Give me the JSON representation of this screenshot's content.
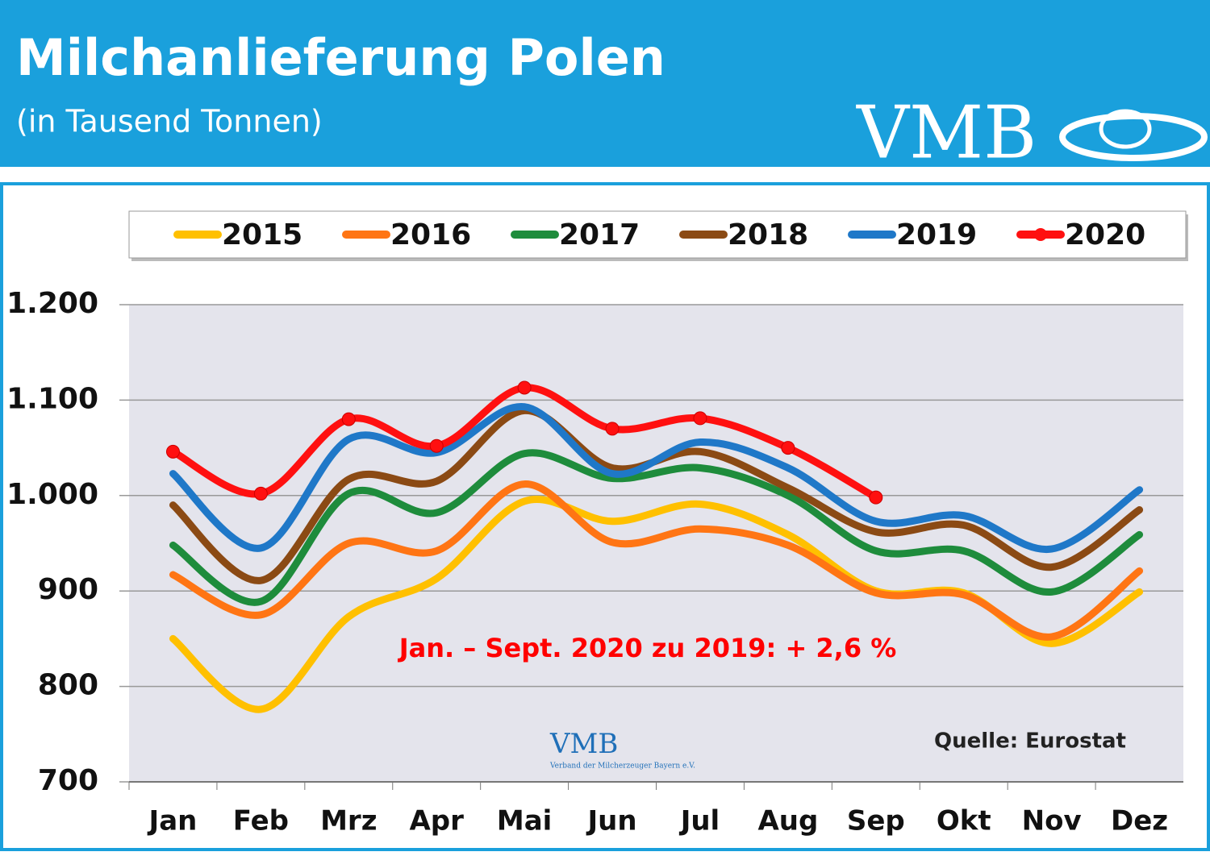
{
  "header": {
    "logo": "VMB"
  },
  "watermark": {
    "logo": "VMB",
    "text": "Verband der Milcherzeuger Bayern e.V."
  },
  "chart_data": {
    "type": "line",
    "title": "Milchanlieferung Polen",
    "subtitle": "(in Tausend Tonnen)",
    "annotation": "Jan. – Sept. 2020 zu 2019: + 2,6 %",
    "source": "Quelle: Eurostat",
    "categories": [
      "Jan",
      "Feb",
      "Mrz",
      "Apr",
      "Mai",
      "Jun",
      "Jul",
      "Aug",
      "Sep",
      "Okt",
      "Nov",
      "Dez"
    ],
    "ylim": [
      700,
      1200
    ],
    "yticks": [
      700,
      800,
      900,
      {
        "value": 1000,
        "label": "1.000"
      },
      {
        "value": 1100,
        "label": "1.100"
      },
      {
        "value": 1200,
        "label": "1.200"
      }
    ],
    "grid": true,
    "legend": "top",
    "series": [
      {
        "name": "2015",
        "color": "#ffc000",
        "values": [
          850,
          776,
          873,
          913,
          994,
          973,
          991,
          959,
          900,
          898,
          845,
          899
        ]
      },
      {
        "name": "2016",
        "color": "#ff7514",
        "values": [
          917,
          875,
          950,
          942,
          1012,
          951,
          965,
          948,
          898,
          896,
          852,
          921
        ]
      },
      {
        "name": "2017",
        "color": "#1e8c3c",
        "values": [
          948,
          889,
          1002,
          982,
          1044,
          1018,
          1029,
          1000,
          942,
          942,
          899,
          959
        ]
      },
      {
        "name": "2018",
        "color": "#8b4a14",
        "values": [
          990,
          911,
          1017,
          1015,
          1089,
          1029,
          1046,
          1008,
          962,
          969,
          925,
          985
        ]
      },
      {
        "name": "2019",
        "color": "#1f78c8",
        "values": [
          1023,
          945,
          1059,
          1045,
          1093,
          1023,
          1056,
          1029,
          973,
          979,
          944,
          1006
        ]
      },
      {
        "name": "2020",
        "color": "#ff1010",
        "markers": true,
        "values": [
          1046,
          1002,
          1080,
          1052,
          1113,
          1070,
          1081,
          1050,
          998,
          null,
          null,
          null
        ]
      }
    ]
  }
}
